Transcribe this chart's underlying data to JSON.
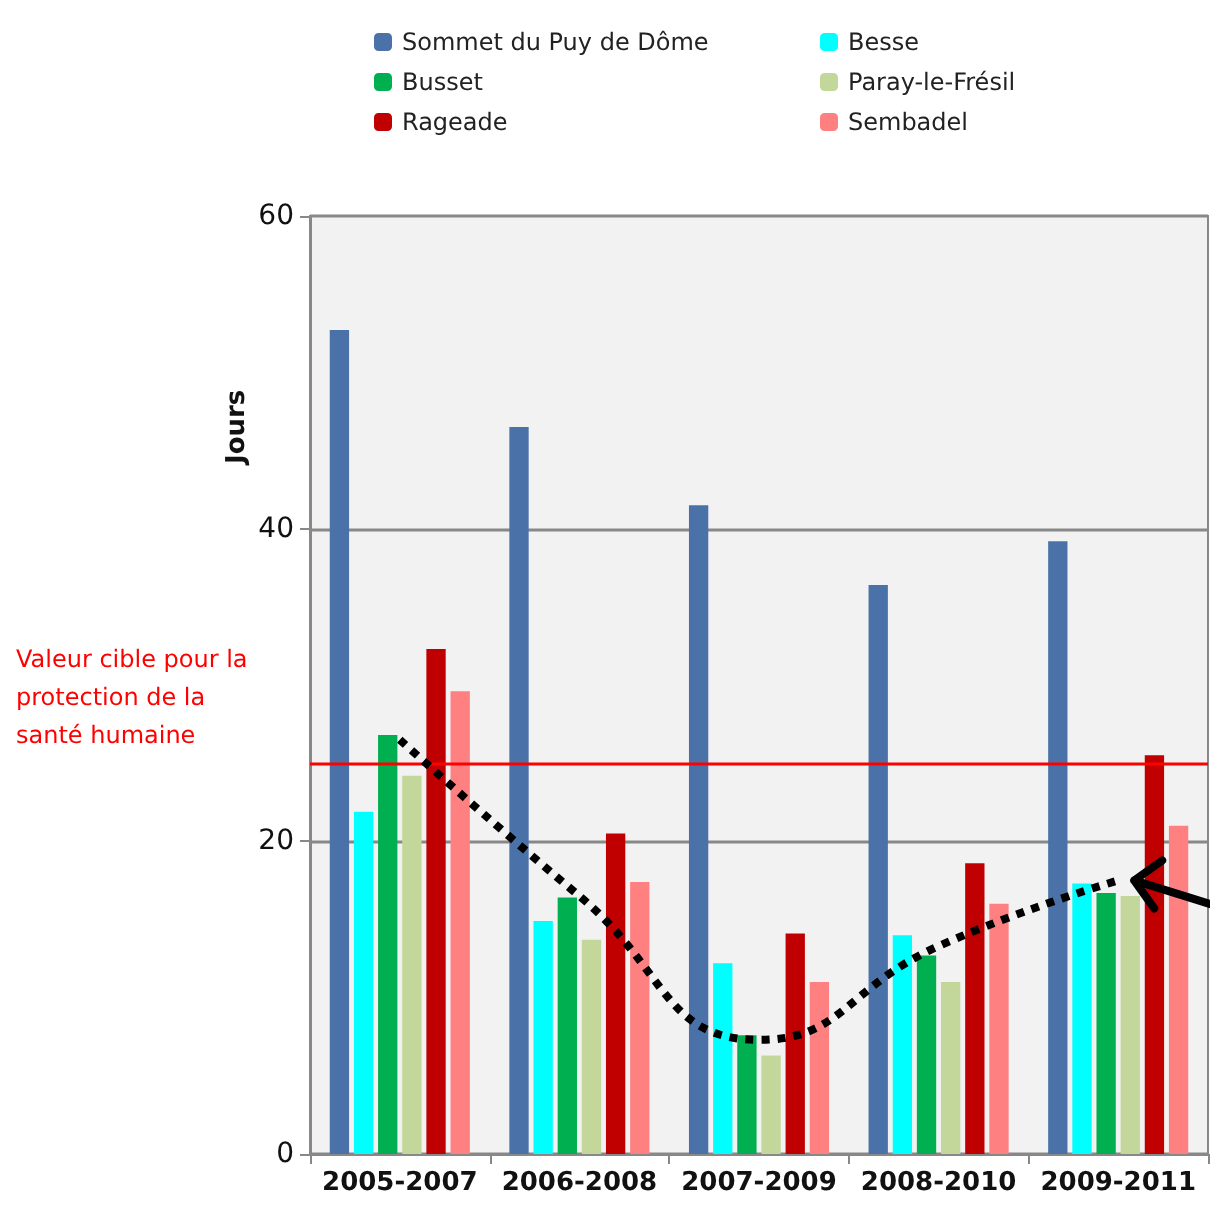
{
  "chart_data": {
    "type": "bar",
    "ylabel": "Jours",
    "categories": [
      "2005-2007",
      "2006-2008",
      "2007-2009",
      "2008-2010",
      "2009-2011"
    ],
    "series": [
      {
        "name": "Sommet du Puy de Dôme",
        "color": "#4a72a8",
        "values": [
          52.7,
          46.5,
          41.5,
          36.4,
          39.2
        ]
      },
      {
        "name": "Besse",
        "color": "#00ffff",
        "values": [
          21.9,
          14.9,
          12.2,
          14.0,
          17.3
        ]
      },
      {
        "name": "Busset",
        "color": "#00b050",
        "values": [
          26.8,
          16.4,
          7.6,
          12.7,
          16.7
        ]
      },
      {
        "name": "Paray-le-Frésil",
        "color": "#c4d79b",
        "values": [
          24.2,
          13.7,
          6.3,
          11.0,
          16.5
        ]
      },
      {
        "name": "Rageade",
        "color": "#c00000",
        "values": [
          32.3,
          20.5,
          14.1,
          18.6,
          25.5
        ]
      },
      {
        "name": "Sembadel",
        "color": "#ff8080",
        "values": [
          29.6,
          17.4,
          11.0,
          16.0,
          21.0
        ]
      },
      {
        "type": "line",
        "color": "#000000",
        "line_style": "dotted",
        "values": [
          26.5,
          16.5,
          7.3,
          13.3,
          17.5
        ]
      }
    ],
    "ylim": [
      0,
      60
    ],
    "yticks": [
      0,
      20,
      40,
      60
    ],
    "grid": "y",
    "legend": "top",
    "marker": "none",
    "ref_lines": [
      {
        "axis": "y",
        "value": 25,
        "label": "Valeur cible pour la protection de la santé humaine",
        "color": "#ff0000"
      }
    ]
  }
}
